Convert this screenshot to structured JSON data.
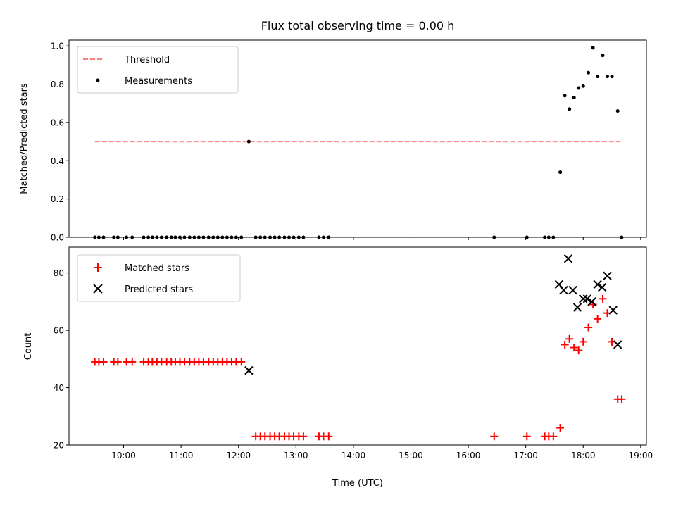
{
  "title": "Flux total observing time = 0.00 h",
  "xlabel": "Time (UTC)",
  "top_ylabel": "Matched/Predicted stars",
  "bottom_ylabel": "Count",
  "top_legend": {
    "threshold": "Threshold",
    "measurements": "Measurements"
  },
  "bottom_legend": {
    "matched": "Matched stars",
    "predicted": "Predicted stars"
  },
  "colors": {
    "threshold": "#ff7f7f",
    "measurements": "#000000",
    "matched": "#ff0000",
    "predicted": "#000000"
  },
  "chart_data": [
    {
      "type": "scatter",
      "title": "Flux total observing time = 0.00 h",
      "ylabel": "Matched/Predicted stars",
      "x_unit": "hours UTC",
      "xlim": [
        9.05,
        19.1
      ],
      "ylim": [
        0.0,
        1.03
      ],
      "xticks": [
        "10:00",
        "11:00",
        "12:00",
        "13:00",
        "14:00",
        "15:00",
        "16:00",
        "17:00",
        "18:00",
        "19:00"
      ],
      "yticks": [
        "0.0",
        "0.2",
        "0.4",
        "0.6",
        "0.8",
        "1.0"
      ],
      "legend_position": "top-left",
      "threshold": {
        "name": "Threshold",
        "y": 0.5,
        "x": [
          9.5,
          18.65
        ]
      },
      "series": [
        {
          "name": "Measurements",
          "points": [
            [
              9.5,
              0
            ],
            [
              9.57,
              0
            ],
            [
              9.65,
              0
            ],
            [
              9.83,
              0
            ],
            [
              9.9,
              0
            ],
            [
              10.05,
              0
            ],
            [
              10.15,
              0
            ],
            [
              10.35,
              0
            ],
            [
              10.43,
              0
            ],
            [
              10.5,
              0
            ],
            [
              10.58,
              0
            ],
            [
              10.66,
              0
            ],
            [
              10.75,
              0
            ],
            [
              10.83,
              0
            ],
            [
              10.9,
              0
            ],
            [
              10.98,
              0
            ],
            [
              11.06,
              0
            ],
            [
              11.15,
              0
            ],
            [
              11.23,
              0
            ],
            [
              11.31,
              0
            ],
            [
              11.39,
              0
            ],
            [
              11.48,
              0
            ],
            [
              11.56,
              0
            ],
            [
              11.64,
              0
            ],
            [
              11.72,
              0
            ],
            [
              11.8,
              0
            ],
            [
              11.88,
              0
            ],
            [
              11.96,
              0
            ],
            [
              12.05,
              0
            ],
            [
              12.18,
              0.5
            ],
            [
              12.3,
              0
            ],
            [
              12.38,
              0
            ],
            [
              12.46,
              0
            ],
            [
              12.55,
              0
            ],
            [
              12.63,
              0
            ],
            [
              12.71,
              0
            ],
            [
              12.8,
              0
            ],
            [
              12.88,
              0
            ],
            [
              12.96,
              0
            ],
            [
              13.05,
              0
            ],
            [
              13.13,
              0
            ],
            [
              13.4,
              0
            ],
            [
              13.48,
              0
            ],
            [
              13.57,
              0
            ],
            [
              16.45,
              0
            ],
            [
              17.02,
              0
            ],
            [
              17.33,
              0
            ],
            [
              17.4,
              0
            ],
            [
              17.48,
              0
            ],
            [
              17.6,
              0.34
            ],
            [
              17.68,
              0.74
            ],
            [
              17.76,
              0.67
            ],
            [
              17.84,
              0.73
            ],
            [
              17.92,
              0.78
            ],
            [
              18.0,
              0.79
            ],
            [
              18.09,
              0.86
            ],
            [
              18.17,
              0.99
            ],
            [
              18.25,
              0.84
            ],
            [
              18.34,
              0.95
            ],
            [
              18.42,
              0.84
            ],
            [
              18.5,
              0.84
            ],
            [
              18.6,
              0.66
            ],
            [
              18.67,
              0
            ]
          ]
        }
      ]
    },
    {
      "type": "scatter",
      "xlabel": "Time (UTC)",
      "ylabel": "Count",
      "x_unit": "hours UTC",
      "xlim": [
        9.05,
        19.1
      ],
      "ylim": [
        20,
        89
      ],
      "xticks": [
        "10:00",
        "11:00",
        "12:00",
        "13:00",
        "14:00",
        "15:00",
        "16:00",
        "17:00",
        "18:00",
        "19:00"
      ],
      "yticks": [
        "20",
        "40",
        "60",
        "80"
      ],
      "legend_position": "top-left",
      "series": [
        {
          "name": "Matched stars",
          "points": [
            [
              9.5,
              49
            ],
            [
              9.57,
              49
            ],
            [
              9.65,
              49
            ],
            [
              9.83,
              49
            ],
            [
              9.9,
              49
            ],
            [
              10.05,
              49
            ],
            [
              10.15,
              49
            ],
            [
              10.35,
              49
            ],
            [
              10.43,
              49
            ],
            [
              10.5,
              49
            ],
            [
              10.58,
              49
            ],
            [
              10.66,
              49
            ],
            [
              10.75,
              49
            ],
            [
              10.83,
              49
            ],
            [
              10.9,
              49
            ],
            [
              10.98,
              49
            ],
            [
              11.06,
              49
            ],
            [
              11.15,
              49
            ],
            [
              11.23,
              49
            ],
            [
              11.31,
              49
            ],
            [
              11.39,
              49
            ],
            [
              11.48,
              49
            ],
            [
              11.56,
              49
            ],
            [
              11.64,
              49
            ],
            [
              11.72,
              49
            ],
            [
              11.8,
              49
            ],
            [
              11.88,
              49
            ],
            [
              11.96,
              49
            ],
            [
              12.05,
              49
            ],
            [
              12.3,
              23
            ],
            [
              12.38,
              23
            ],
            [
              12.46,
              23
            ],
            [
              12.55,
              23
            ],
            [
              12.63,
              23
            ],
            [
              12.71,
              23
            ],
            [
              12.8,
              23
            ],
            [
              12.88,
              23
            ],
            [
              12.96,
              23
            ],
            [
              13.05,
              23
            ],
            [
              13.13,
              23
            ],
            [
              13.4,
              23
            ],
            [
              13.48,
              23
            ],
            [
              13.57,
              23
            ],
            [
              16.45,
              23
            ],
            [
              17.02,
              23
            ],
            [
              17.33,
              23
            ],
            [
              17.4,
              23
            ],
            [
              17.48,
              23
            ],
            [
              17.6,
              26
            ],
            [
              17.68,
              55
            ],
            [
              17.76,
              57
            ],
            [
              17.84,
              54
            ],
            [
              17.92,
              53
            ],
            [
              18.0,
              56
            ],
            [
              18.09,
              61
            ],
            [
              18.17,
              69
            ],
            [
              18.25,
              64
            ],
            [
              18.34,
              71
            ],
            [
              18.42,
              66
            ],
            [
              18.5,
              56
            ],
            [
              18.6,
              36
            ],
            [
              18.67,
              36
            ]
          ]
        },
        {
          "name": "Predicted stars",
          "points": [
            [
              12.18,
              46
            ],
            [
              17.58,
              76
            ],
            [
              17.66,
              74
            ],
            [
              17.74,
              85
            ],
            [
              17.82,
              74
            ],
            [
              17.9,
              68
            ],
            [
              18.0,
              71
            ],
            [
              18.07,
              71
            ],
            [
              18.15,
              70
            ],
            [
              18.25,
              76
            ],
            [
              18.33,
              75
            ],
            [
              18.42,
              79
            ],
            [
              18.52,
              67
            ],
            [
              18.6,
              55
            ]
          ]
        }
      ]
    }
  ]
}
